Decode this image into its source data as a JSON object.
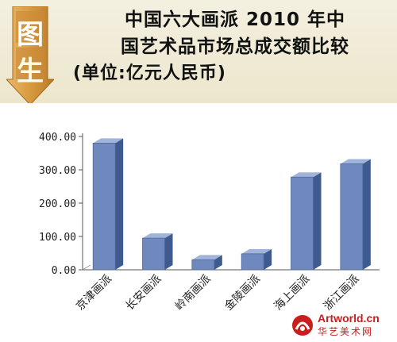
{
  "badge": {
    "chars": [
      "图",
      "生"
    ]
  },
  "header": {
    "title_line1": "中国六大画派 2010 年中",
    "title_line2": "国艺术品市场总成交额比较",
    "title_line3": "(单位:亿元人民币)"
  },
  "chart_data": {
    "type": "bar",
    "title": "中国六大画派 2010 年中国艺术品市场总成交额比较",
    "subtitle": "(单位:亿元人民币)",
    "categories": [
      "京津画派",
      "长安画派",
      "岭南画派",
      "金陵画派",
      "海上画派",
      "浙江画派"
    ],
    "values": [
      380,
      95,
      30,
      48,
      278,
      318
    ],
    "ylim": [
      0,
      400
    ],
    "yticks": [
      "0.00",
      "100.00",
      "200.00",
      "300.00",
      "400.00"
    ],
    "grid": false,
    "legend": "none",
    "colors": {
      "bar_front": "#6f89bf",
      "bar_side": "#3f5a8e",
      "bar_top": "#9fb3db",
      "axis": "#555555"
    }
  },
  "watermark": {
    "site": "Artworld.cn",
    "name": "华艺美术网"
  }
}
